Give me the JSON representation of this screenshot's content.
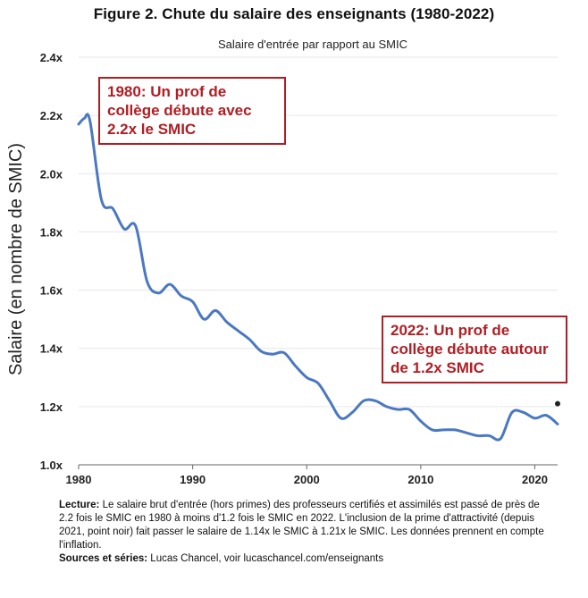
{
  "chart_data": {
    "type": "line",
    "title": "Figure 2. Chute du salaire des enseignants (1980-2022)",
    "subtitle": "Salaire d'entrée par rapport au SMIC",
    "xlabel": "",
    "ylabel": "Salaire (en nombre de SMIC)",
    "xlim": [
      1980,
      2022
    ],
    "ylim": [
      1.0,
      2.4
    ],
    "x_ticks": [
      1980,
      1990,
      2000,
      2010,
      2020
    ],
    "x_tick_labels": [
      "1980",
      "1990",
      "2000",
      "2010",
      "2020"
    ],
    "y_ticks": [
      1.0,
      1.2,
      1.4,
      1.6,
      1.8,
      2.0,
      2.2,
      2.4
    ],
    "y_tick_labels": [
      "1.0x",
      "1.2x",
      "1.4x",
      "1.6x",
      "1.8x",
      "2.0x",
      "2.2x",
      "2.4x"
    ],
    "grid": "horizontal",
    "series": [
      {
        "name": "Salaire d'entrée / SMIC",
        "color": "#4a78c2",
        "x": [
          1980,
          1980.5,
          1981,
          1982,
          1983,
          1984,
          1985,
          1986,
          1987,
          1988,
          1989,
          1990,
          1991,
          1992,
          1993,
          1994,
          1995,
          1996,
          1997,
          1998,
          1999,
          2000,
          2001,
          2002,
          2003,
          2004,
          2005,
          2006,
          2007,
          2008,
          2009,
          2010,
          2011,
          2012,
          2013,
          2014,
          2015,
          2016,
          2017,
          2018,
          2019,
          2020,
          2021,
          2022
        ],
        "values": [
          2.17,
          2.19,
          2.18,
          1.91,
          1.88,
          1.81,
          1.82,
          1.63,
          1.59,
          1.62,
          1.58,
          1.56,
          1.5,
          1.53,
          1.49,
          1.46,
          1.43,
          1.39,
          1.38,
          1.385,
          1.34,
          1.3,
          1.28,
          1.22,
          1.16,
          1.18,
          1.22,
          1.22,
          1.2,
          1.19,
          1.19,
          1.15,
          1.12,
          1.12,
          1.12,
          1.11,
          1.1,
          1.1,
          1.09,
          1.18,
          1.18,
          1.16,
          1.17,
          1.14
        ]
      },
      {
        "name": "Prime d'attractivité (point noir)",
        "color": "#222222",
        "x": [
          2022
        ],
        "values": [
          1.21
        ]
      }
    ],
    "annotations": [
      {
        "text": "1980: Un prof de collège débute avec 2.2x le SMIC",
        "color": "#b01e24"
      },
      {
        "text": "2022: Un prof de collège débute autour de 1.2x SMIC",
        "color": "#b01e24"
      }
    ]
  },
  "notes": {
    "lecture_label": "Lecture:",
    "lecture_text": "Le salaire brut d'entrée (hors primes) des professeurs certifiés et assimilés est passé de près de 2.2 fois le SMIC en 1980 à moins d'1.2 fois le SMIC en 2022. L'inclusion de la prime d'attractivité (depuis 2021, point noir) fait passer le salaire de 1.14x le SMIC à 1.21x le SMIC. Les données prennent en compte l'inflation.",
    "sources_label": "Sources et séries:",
    "sources_text": "Lucas Chancel, voir lucaschancel.com/enseignants"
  }
}
